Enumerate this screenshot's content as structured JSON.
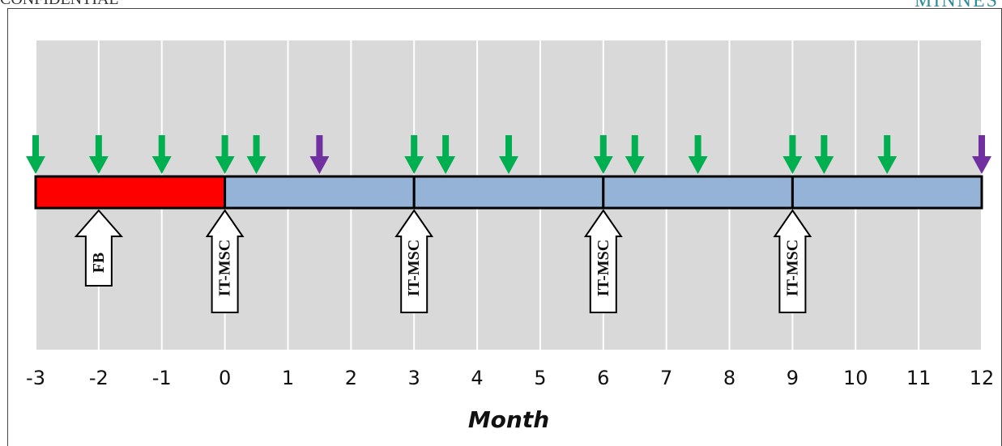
{
  "header": {
    "left_text": "CONFIDENTIAL",
    "right_text": "MINNES"
  },
  "chart_data": {
    "type": "timeline",
    "xlabel": "Month",
    "xlim": [
      -3,
      12
    ],
    "ticks": [
      "-3",
      "-2",
      "-1",
      "0",
      "1",
      "2",
      "3",
      "4",
      "5",
      "6",
      "7",
      "8",
      "9",
      "10",
      "11",
      "12"
    ],
    "grid": true,
    "bar_segments": [
      {
        "start": -3,
        "end": 0,
        "color": "#ff0000"
      },
      {
        "start": 0,
        "end": 3,
        "color": "#95b3d7"
      },
      {
        "start": 3,
        "end": 6,
        "color": "#95b3d7"
      },
      {
        "start": 6,
        "end": 9,
        "color": "#95b3d7"
      },
      {
        "start": 9,
        "end": 12,
        "color": "#95b3d7"
      }
    ],
    "green_markers": [
      -3,
      -2,
      -1,
      0,
      0.5,
      3,
      3.5,
      4.5,
      6,
      6.5,
      7.5,
      9,
      9.5,
      10.5
    ],
    "purple_markers": [
      1.5,
      12
    ],
    "green_color": "#00b050",
    "purple_color": "#7030a0",
    "events": [
      {
        "month": -2,
        "label": "FB"
      },
      {
        "month": 0,
        "label": "IT-MSC"
      },
      {
        "month": 3,
        "label": "IT-MSC"
      },
      {
        "month": 6,
        "label": "IT-MSC"
      },
      {
        "month": 9,
        "label": "IT-MSC"
      }
    ]
  }
}
